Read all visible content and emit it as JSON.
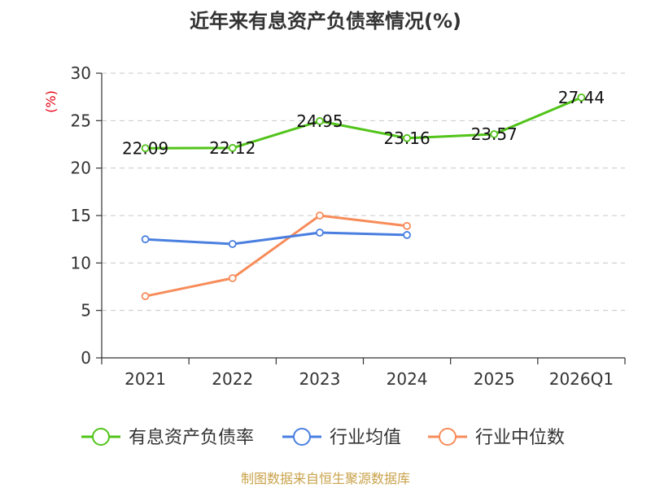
{
  "chart_data": {
    "type": "line",
    "title": "近年来有息资产负债率情况(%)",
    "ylabel": "(%)",
    "categories": [
      "2021",
      "2022",
      "2023",
      "2024",
      "2025",
      "2026Q1"
    ],
    "ylim": [
      0,
      30
    ],
    "yticks": [
      0,
      5,
      10,
      15,
      20,
      25,
      30
    ],
    "grid": true,
    "legend_position": "bottom",
    "series": [
      {
        "name": "有息资产负债率",
        "color": "#52c41a",
        "show_labels": true,
        "values": [
          22.09,
          22.12,
          24.95,
          23.16,
          23.57,
          27.44
        ]
      },
      {
        "name": "行业均值",
        "color": "#4a7fe0",
        "show_labels": false,
        "values": [
          12.5,
          12.0,
          13.2,
          12.95,
          null,
          null
        ]
      },
      {
        "name": "行业中位数",
        "color": "#f78c5a",
        "show_labels": false,
        "values": [
          6.5,
          8.4,
          15.0,
          13.9,
          null,
          null
        ]
      }
    ]
  },
  "source_text": "制图数据来自恒生聚源数据库"
}
